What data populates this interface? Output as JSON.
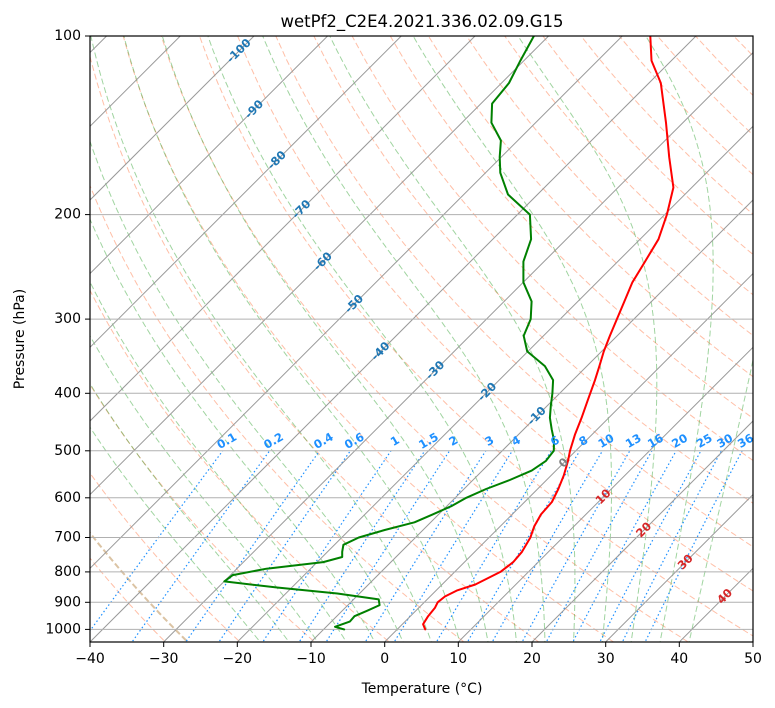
{
  "chart_data": {
    "type": "line",
    "title": "wetPf2_C2E4.2021.336.02.09.G15",
    "xlabel": "Temperature (°C)",
    "ylabel": "Pressure (hPa)",
    "xlim": [
      -40,
      50
    ],
    "ylim": [
      1050,
      100
    ],
    "y_scale": "log",
    "grid": true,
    "x_ticks": [
      -40,
      -30,
      -20,
      -10,
      0,
      10,
      20,
      30,
      40,
      50
    ],
    "x_tick_labels": [
      "−40",
      "−30",
      "−20",
      "−10",
      "0",
      "10",
      "20",
      "30",
      "40",
      "50"
    ],
    "y_ticks": [
      1000,
      900,
      800,
      700,
      600,
      500,
      400,
      300,
      200,
      100
    ],
    "y_tick_labels": [
      "1000",
      "900",
      "800",
      "700",
      "600",
      "500",
      "400",
      "300",
      "200",
      "100"
    ],
    "series": [
      {
        "color": "#ff0000",
        "points": [
          [
            1000,
            3.8
          ],
          [
            980,
            2.8
          ],
          [
            950,
            2.4
          ],
          [
            920,
            2.2
          ],
          [
            900,
            1.8
          ],
          [
            880,
            2.0
          ],
          [
            860,
            2.8
          ],
          [
            840,
            4.5
          ],
          [
            800,
            6.2
          ],
          [
            770,
            6.6
          ],
          [
            740,
            6.4
          ],
          [
            700,
            5.6
          ],
          [
            670,
            4.6
          ],
          [
            640,
            3.9
          ],
          [
            610,
            3.7
          ],
          [
            580,
            2.8
          ],
          [
            550,
            1.7
          ],
          [
            520,
            0.3
          ],
          [
            500,
            -0.8
          ],
          [
            470,
            -2.3
          ],
          [
            440,
            -3.7
          ],
          [
            410,
            -5.3
          ],
          [
            380,
            -7.0
          ],
          [
            360,
            -8.3
          ],
          [
            340,
            -9.7
          ],
          [
            320,
            -11.0
          ],
          [
            300,
            -12.3
          ],
          [
            280,
            -13.7
          ],
          [
            260,
            -15.2
          ],
          [
            240,
            -16.3
          ],
          [
            220,
            -17.5
          ],
          [
            200,
            -19.7
          ],
          [
            180,
            -22.5
          ],
          [
            160,
            -27.2
          ],
          [
            140,
            -32.3
          ],
          [
            120,
            -38.4
          ],
          [
            110,
            -42.7
          ],
          [
            100,
            -46.2
          ]
        ]
      },
      {
        "color": "#008000",
        "points": [
          [
            1000,
            -7.2
          ],
          [
            990,
            -8.8
          ],
          [
            970,
            -7.5
          ],
          [
            950,
            -7.6
          ],
          [
            930,
            -6.6
          ],
          [
            910,
            -5.7
          ],
          [
            890,
            -6.6
          ],
          [
            870,
            -13.0
          ],
          [
            850,
            -22.0
          ],
          [
            830,
            -30.0
          ],
          [
            810,
            -29.7
          ],
          [
            790,
            -26.0
          ],
          [
            770,
            -19.2
          ],
          [
            755,
            -17.3
          ],
          [
            740,
            -18.0
          ],
          [
            720,
            -18.8
          ],
          [
            700,
            -17.7
          ],
          [
            680,
            -15.2
          ],
          [
            660,
            -12.2
          ],
          [
            640,
            -10.8
          ],
          [
            620,
            -9.4
          ],
          [
            600,
            -8.5
          ],
          [
            580,
            -7.0
          ],
          [
            560,
            -5.0
          ],
          [
            540,
            -3.3
          ],
          [
            520,
            -2.7
          ],
          [
            500,
            -3.0
          ],
          [
            480,
            -4.4
          ],
          [
            460,
            -6.2
          ],
          [
            440,
            -8.0
          ],
          [
            420,
            -9.5
          ],
          [
            400,
            -11.0
          ],
          [
            380,
            -12.7
          ],
          [
            360,
            -15.7
          ],
          [
            340,
            -20.1
          ],
          [
            320,
            -22.7
          ],
          [
            300,
            -24.0
          ],
          [
            280,
            -26.3
          ],
          [
            260,
            -30.0
          ],
          [
            240,
            -32.8
          ],
          [
            220,
            -34.8
          ],
          [
            200,
            -38.3
          ],
          [
            185,
            -44.0
          ],
          [
            170,
            -48.0
          ],
          [
            160,
            -50.2
          ],
          [
            150,
            -52.3
          ],
          [
            140,
            -56.0
          ],
          [
            130,
            -58.5
          ],
          [
            120,
            -59.0
          ],
          [
            110,
            -60.5
          ],
          [
            100,
            -62.0
          ]
        ]
      }
    ],
    "isotherm_labels": [
      "-100",
      "-90",
      "-80",
      "-70",
      "-60",
      "-50",
      "-40",
      "-30",
      "-20",
      "-10",
      "0",
      "10",
      "20",
      "30",
      "40"
    ],
    "mixing_ratio_labels": [
      "0.1",
      "0.2",
      "0.4",
      "0.6",
      "1",
      "1.5",
      "2",
      "3",
      "4",
      "6",
      "8",
      "10",
      "13",
      "16",
      "20",
      "25",
      "30",
      "36"
    ],
    "colors": {
      "temperature": "#ff0000",
      "dewpoint": "#008000",
      "isotherm": "#999999",
      "dry_adiabat": "#ff7f50",
      "moist_adiabat": "#2ca02c",
      "mixing_ratio": "#1e90ff",
      "isotherm_label_cold": "#1f77b4",
      "isotherm_label_warm": "#d62728",
      "isotherm_label_zero": "#808080",
      "special_adiabat": "#d2b48c",
      "grid": "#b0b0b0"
    }
  }
}
